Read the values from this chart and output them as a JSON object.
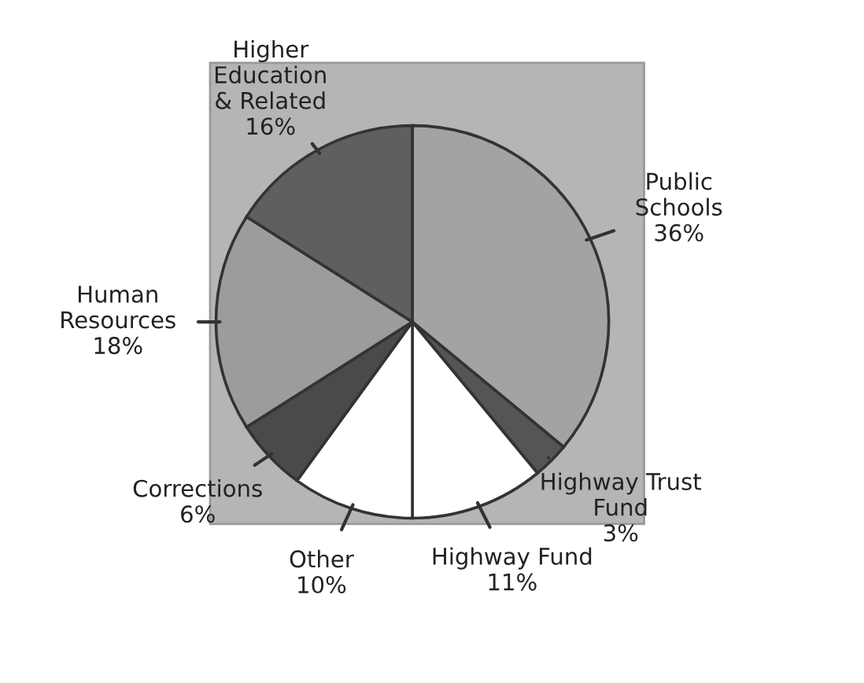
{
  "chart_data": {
    "type": "pie",
    "categories": [
      "Public\nSchools",
      "Highway Trust\nFund",
      "Highway Fund",
      "Other",
      "Corrections",
      "Human\nResources",
      "Higher\nEducation\n& Related"
    ],
    "values": [
      36,
      3,
      11,
      10,
      6,
      18,
      16
    ],
    "value_labels": [
      "36%",
      "3%",
      "11%",
      "10%",
      "6%",
      "18%",
      "16%"
    ],
    "colors": [
      "#a3a3a3",
      "#555555",
      "#ffffff",
      "#ffffff",
      "#4a4a4a",
      "#9c9c9c",
      "#5f5f5f"
    ]
  }
}
